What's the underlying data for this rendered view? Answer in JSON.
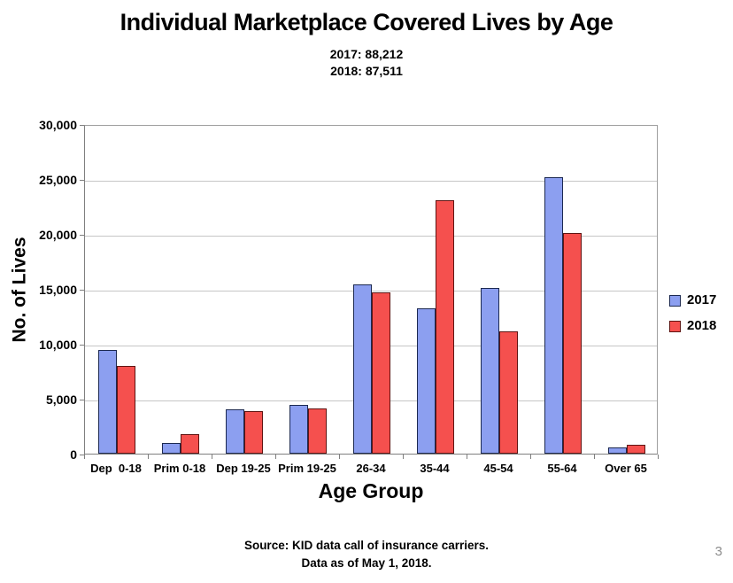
{
  "page": {
    "page_number": "3"
  },
  "header": {
    "title": "Individual Marketplace Covered Lives by Age",
    "subtitle_lines": [
      "2017: 88,212",
      "2018: 87,511"
    ]
  },
  "footer": {
    "source_lines": [
      "Source: KID data call of insurance carriers.",
      "Data as of May 1, 2018."
    ]
  },
  "chart_data": {
    "type": "bar",
    "title": "Individual Marketplace Covered Lives by Age",
    "xlabel": "Age Group",
    "ylabel": "No. of Lives",
    "ylim": [
      0,
      30000
    ],
    "ytick_step": 5000,
    "ytick_labels": [
      "0",
      "5,000",
      "10,000",
      "15,000",
      "20,000",
      "25,000",
      "30,000"
    ],
    "grid": true,
    "legend_position": "right",
    "categories": [
      "Dep  0-18",
      "Prim 0-18",
      "Dep 19-25",
      "Prim 19-25",
      "26-34",
      "35-44",
      "45-54",
      "55-64",
      "Over 65"
    ],
    "series": [
      {
        "name": "2017",
        "fill_color": "#8C9FF0",
        "border_color": "#1c2951",
        "values": [
          9400,
          1000,
          4000,
          4400,
          15400,
          13200,
          15100,
          25200,
          550
        ],
        "total_label": "2017: 88,212"
      },
      {
        "name": "2018",
        "fill_color": "#F5504E",
        "border_color": "#5f1412",
        "values": [
          8000,
          1800,
          3850,
          4100,
          14700,
          23100,
          11100,
          20100,
          800
        ],
        "total_label": "2018: 87,511"
      }
    ]
  },
  "style_colors": {
    "gridline": "#c6c6c6",
    "axis": "#7f7f7f",
    "page_number": "#8c8c8c"
  }
}
